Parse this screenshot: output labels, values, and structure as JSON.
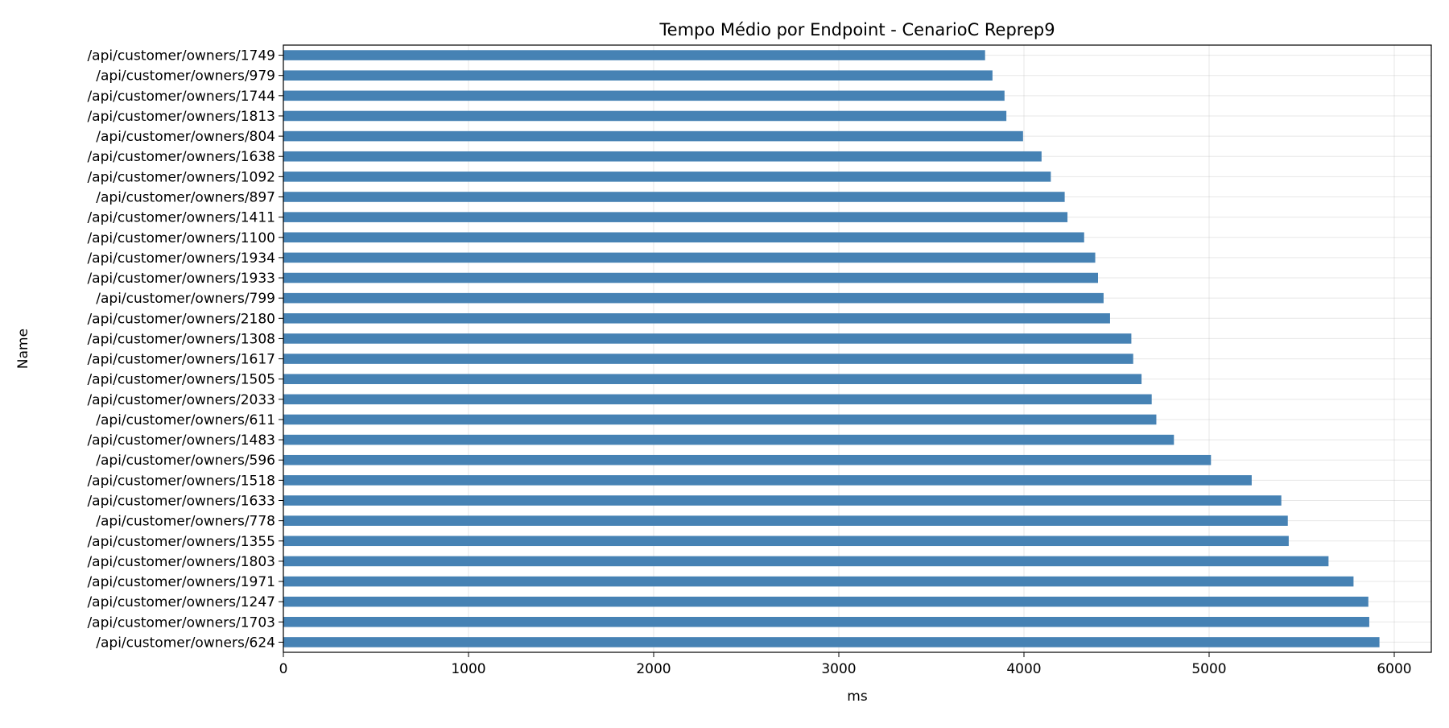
{
  "chart_data": {
    "type": "bar",
    "orientation": "horizontal",
    "title": "Tempo Médio por Endpoint - CenarioC Reprep9",
    "xlabel": "ms",
    "ylabel": "Name",
    "xlim": [
      0,
      6200
    ],
    "xticks": [
      0,
      1000,
      2000,
      3000,
      4000,
      5000,
      6000
    ],
    "grid": true,
    "bar_color": "#4682b4",
    "categories": [
      "/api/customer/owners/1749",
      "/api/customer/owners/979",
      "/api/customer/owners/1744",
      "/api/customer/owners/1813",
      "/api/customer/owners/804",
      "/api/customer/owners/1638",
      "/api/customer/owners/1092",
      "/api/customer/owners/897",
      "/api/customer/owners/1411",
      "/api/customer/owners/1100",
      "/api/customer/owners/1934",
      "/api/customer/owners/1933",
      "/api/customer/owners/799",
      "/api/customer/owners/2180",
      "/api/customer/owners/1308",
      "/api/customer/owners/1617",
      "/api/customer/owners/1505",
      "/api/customer/owners/2033",
      "/api/customer/owners/611",
      "/api/customer/owners/1483",
      "/api/customer/owners/596",
      "/api/customer/owners/1518",
      "/api/customer/owners/1633",
      "/api/customer/owners/778",
      "/api/customer/owners/1355",
      "/api/customer/owners/1803",
      "/api/customer/owners/1971",
      "/api/customer/owners/1247",
      "/api/customer/owners/1703",
      "/api/customer/owners/624"
    ],
    "values": [
      3790,
      3830,
      3895,
      3905,
      3995,
      4095,
      4145,
      4220,
      4235,
      4325,
      4385,
      4400,
      4430,
      4465,
      4580,
      4590,
      4635,
      4690,
      4715,
      4810,
      5010,
      5230,
      5390,
      5425,
      5430,
      5645,
      5780,
      5860,
      5865,
      5920
    ]
  }
}
